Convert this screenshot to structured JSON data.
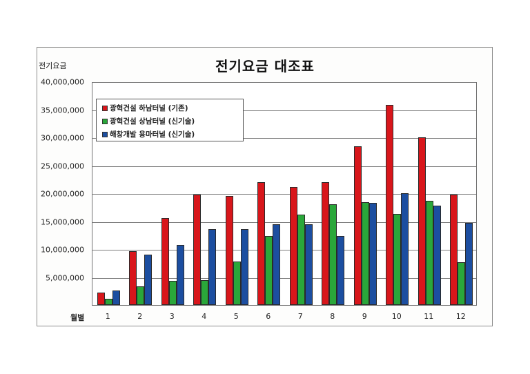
{
  "title": "전기요금 대조표",
  "ylabel": "전기요금",
  "xlabel": "월별",
  "colors": {
    "s0": "#d8161b",
    "s1": "#2aa73a",
    "s2": "#1c4ea0"
  },
  "legend": [
    {
      "label": "광혁건설 하남터널 (기존)",
      "color": "#d8161b"
    },
    {
      "label": "광혁건설 상남터널 (신기술)",
      "color": "#2aa73a"
    },
    {
      "label": "해창개발 용마터널 (신기술)",
      "color": "#1c4ea0"
    }
  ],
  "yticks": [
    "40,000,000",
    "35,000,000",
    "30,000,000",
    "25,000,000",
    "20,000,000",
    "15,000,000",
    "10,000,000",
    "5,000,000"
  ],
  "chart_data": {
    "type": "bar",
    "title": "전기요금 대조표",
    "xlabel": "월별",
    "ylabel": "전기요금",
    "ylim": [
      0,
      40000000
    ],
    "yticks": [
      5000000,
      10000000,
      15000000,
      20000000,
      25000000,
      30000000,
      35000000,
      40000000
    ],
    "grid": true,
    "legend_position": "upper-left inside plot",
    "categories": [
      "1",
      "2",
      "3",
      "4",
      "5",
      "6",
      "7",
      "8",
      "9",
      "10",
      "11",
      "12"
    ],
    "series": [
      {
        "name": "광혁건설 하남터널 (기존)",
        "color": "#d8161b",
        "values": [
          2200000,
          9600000,
          15500000,
          19800000,
          19500000,
          22000000,
          21100000,
          22000000,
          28400000,
          35800000,
          30000000,
          19700000
        ]
      },
      {
        "name": "광혁건설 상남터널 (신기술)",
        "color": "#2aa73a",
        "values": [
          1100000,
          3300000,
          4300000,
          4400000,
          7800000,
          12300000,
          16200000,
          18000000,
          18400000,
          16300000,
          18600000,
          7600000
        ]
      },
      {
        "name": "해창개발 용마터널 (신기술)",
        "color": "#1c4ea0",
        "values": [
          2600000,
          9000000,
          10700000,
          13600000,
          13600000,
          14400000,
          14400000,
          12300000,
          18300000,
          20000000,
          17800000,
          14700000
        ]
      }
    ]
  }
}
